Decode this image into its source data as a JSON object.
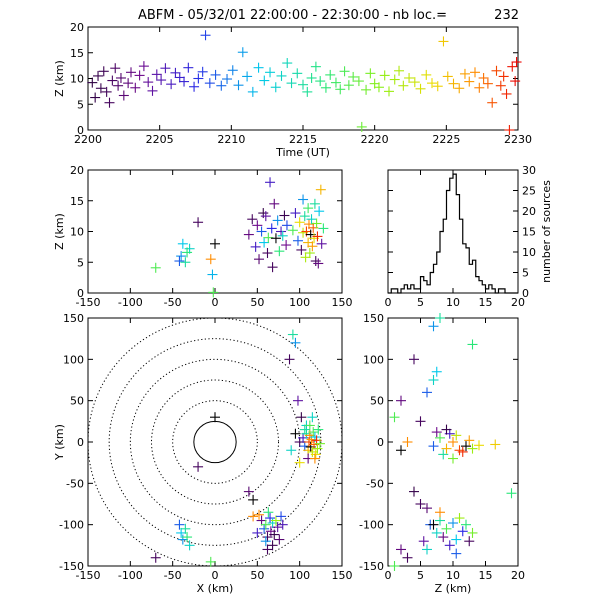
{
  "header": {
    "title_left": "ABFM - 05/32/01 22:00:00 - 22:30:00 - nb loc.=",
    "count": "232"
  },
  "chart_data": [
    {
      "id": "time-height",
      "type": "scatter",
      "xlabel": "Time (UT)",
      "ylabel": "Z (km)",
      "xlim": [
        2200,
        2230
      ],
      "ylim": [
        0,
        20
      ],
      "xticks": [
        2200,
        2205,
        2210,
        2215,
        2220,
        2225,
        2230
      ],
      "yticks": [
        0,
        5,
        10,
        15,
        20
      ],
      "color_by": "time",
      "points": [
        [
          2200.3,
          9.2
        ],
        [
          2200.5,
          6.3
        ],
        [
          2200.7,
          10.5
        ],
        [
          2200.9,
          8.1
        ],
        [
          2201.1,
          11.4
        ],
        [
          2201.3,
          7.4
        ],
        [
          2201.5,
          5.3
        ],
        [
          2201.7,
          9.6
        ],
        [
          2201.9,
          12.0
        ],
        [
          2202.1,
          8.6
        ],
        [
          2202.3,
          10.1
        ],
        [
          2202.5,
          6.7
        ],
        [
          2202.8,
          9.1
        ],
        [
          2203.0,
          11.2
        ],
        [
          2203.3,
          8.2
        ],
        [
          2203.6,
          10.6
        ],
        [
          2203.9,
          12.4
        ],
        [
          2204.2,
          9.3
        ],
        [
          2204.5,
          7.6
        ],
        [
          2204.8,
          10.8
        ],
        [
          2205.1,
          9.7
        ],
        [
          2205.4,
          12.0
        ],
        [
          2205.8,
          8.9
        ],
        [
          2206.1,
          11.1
        ],
        [
          2206.4,
          10.2
        ],
        [
          2206.7,
          9.4
        ],
        [
          2207.0,
          12.1
        ],
        [
          2207.4,
          8.4
        ],
        [
          2207.7,
          10.0
        ],
        [
          2208.0,
          11.3
        ],
        [
          2208.2,
          18.4
        ],
        [
          2208.5,
          9.1
        ],
        [
          2208.9,
          10.7
        ],
        [
          2209.3,
          8.6
        ],
        [
          2209.7,
          9.9
        ],
        [
          2210.1,
          11.6
        ],
        [
          2210.5,
          8.7
        ],
        [
          2210.8,
          15.1
        ],
        [
          2211.1,
          10.4
        ],
        [
          2211.5,
          7.4
        ],
        [
          2211.9,
          12.1
        ],
        [
          2212.3,
          9.6
        ],
        [
          2212.7,
          11.2
        ],
        [
          2213.1,
          8.3
        ],
        [
          2213.5,
          10.5
        ],
        [
          2213.9,
          13.0
        ],
        [
          2214.2,
          9.1
        ],
        [
          2214.6,
          11.0
        ],
        [
          2215.0,
          8.8
        ],
        [
          2215.3,
          7.4
        ],
        [
          2215.6,
          10.1
        ],
        [
          2215.9,
          12.3
        ],
        [
          2216.2,
          9.5
        ],
        [
          2216.6,
          8.2
        ],
        [
          2216.9,
          10.7
        ],
        [
          2217.3,
          9.2
        ],
        [
          2217.6,
          7.9
        ],
        [
          2217.9,
          11.4
        ],
        [
          2218.2,
          8.7
        ],
        [
          2218.5,
          10.3
        ],
        [
          2218.9,
          9.5
        ],
        [
          2219.1,
          0.6
        ],
        [
          2219.4,
          7.8
        ],
        [
          2219.7,
          11.0
        ],
        [
          2220.0,
          9.0
        ],
        [
          2220.3,
          8.3
        ],
        [
          2220.7,
          10.6
        ],
        [
          2221.0,
          7.5
        ],
        [
          2221.4,
          9.8
        ],
        [
          2221.7,
          11.5
        ],
        [
          2222.0,
          8.6
        ],
        [
          2222.4,
          10.1
        ],
        [
          2222.8,
          9.3
        ],
        [
          2223.2,
          8.0
        ],
        [
          2223.6,
          10.7
        ],
        [
          2224.0,
          9.1
        ],
        [
          2224.4,
          8.5
        ],
        [
          2224.8,
          17.2
        ],
        [
          2225.1,
          10.4
        ],
        [
          2225.5,
          9.0
        ],
        [
          2225.9,
          8.1
        ],
        [
          2226.3,
          10.9
        ],
        [
          2226.6,
          9.4
        ],
        [
          2227.0,
          11.2
        ],
        [
          2227.3,
          8.2
        ],
        [
          2227.6,
          10.1
        ],
        [
          2227.9,
          9.0
        ],
        [
          2228.2,
          5.3
        ],
        [
          2228.5,
          11.5
        ],
        [
          2228.8,
          8.6
        ],
        [
          2229.0,
          10.4
        ],
        [
          2229.2,
          7.0
        ],
        [
          2229.4,
          0.0
        ],
        [
          2229.6,
          12.3
        ],
        [
          2229.8,
          9.5
        ],
        [
          2229.9,
          13.2
        ]
      ]
    },
    {
      "id": "x-height",
      "type": "scatter",
      "xlabel": "",
      "ylabel": "Z (km)",
      "xlim": [
        -150,
        150
      ],
      "ylim": [
        0,
        20
      ],
      "xticks": [
        -150,
        -100,
        -50,
        0,
        50,
        100,
        150
      ],
      "yticks": [
        0,
        5,
        10,
        15,
        20
      ],
      "points": [
        [
          -70,
          4.1,
          0.6
        ],
        [
          -40,
          6.0,
          0.35
        ],
        [
          -38,
          8.0,
          0.4
        ],
        [
          -35,
          5.0,
          0.5
        ],
        [
          -30,
          7.2,
          0.45
        ],
        [
          -42,
          5.2,
          0.3
        ],
        [
          -33,
          6.6,
          0.55
        ],
        [
          -20,
          11.5,
          0.05
        ],
        [
          -5,
          5.5,
          0.9
        ],
        [
          0,
          8.0,
          0.99
        ],
        [
          -3,
          3.0,
          0.38
        ],
        [
          -2,
          0.1,
          0.6
        ],
        [
          40,
          9.5,
          0.1
        ],
        [
          44,
          12.0,
          0.05
        ],
        [
          48,
          7.5,
          0.2
        ],
        [
          50,
          11.0,
          0.12
        ],
        [
          52,
          5.5,
          0.08
        ],
        [
          55,
          10.0,
          0.3
        ],
        [
          57,
          13.0,
          0.02
        ],
        [
          58,
          8.2,
          0.4
        ],
        [
          60,
          12.5,
          0.15
        ],
        [
          62,
          6.5,
          0.05
        ],
        [
          63,
          9.0,
          0.6
        ],
        [
          65,
          18.0,
          0.2
        ],
        [
          67,
          10.5,
          0.25
        ],
        [
          68,
          4.2,
          0.05
        ],
        [
          70,
          14.5,
          0.1
        ],
        [
          72,
          8.9,
          0.99
        ],
        [
          74,
          11.8,
          0.35
        ],
        [
          76,
          6.8,
          0.55
        ],
        [
          78,
          10.0,
          0.18
        ],
        [
          80,
          9.3,
          0.45
        ],
        [
          82,
          12.6,
          0.03
        ],
        [
          84,
          7.8,
          0.12
        ],
        [
          85,
          11.0,
          0.28
        ],
        [
          92,
          10.2,
          0.6
        ],
        [
          95,
          13.0,
          0.2
        ],
        [
          98,
          8.5,
          0.3
        ],
        [
          100,
          11.5,
          0.8
        ],
        [
          102,
          7.0,
          0.05
        ],
        [
          104,
          9.8,
          0.75
        ],
        [
          106,
          12.5,
          0.5
        ],
        [
          108,
          10.0,
          0.95
        ],
        [
          110,
          8.2,
          0.85
        ],
        [
          111,
          11.2,
          0.9
        ],
        [
          112,
          6.5,
          0.7
        ],
        [
          113,
          9.5,
          0.99
        ],
        [
          114,
          12.0,
          0.45
        ],
        [
          115,
          7.6,
          0.88
        ],
        [
          116,
          10.6,
          0.93
        ],
        [
          117,
          8.9,
          0.8
        ],
        [
          118,
          14.5,
          0.5
        ],
        [
          119,
          5.2,
          0.05
        ],
        [
          120,
          11.3,
          0.65
        ],
        [
          121,
          9.2,
          0.97
        ],
        [
          122,
          4.8,
          0.1
        ],
        [
          123,
          13.3,
          0.4
        ],
        [
          125,
          16.8,
          0.85
        ],
        [
          126,
          8.0,
          0.15
        ],
        [
          128,
          10.5,
          0.55
        ],
        [
          104,
          15.2,
          0.35
        ],
        [
          110,
          13.8,
          0.58
        ],
        [
          107,
          5.8,
          0.72
        ]
      ]
    },
    {
      "id": "height-histogram",
      "type": "bar",
      "xlabel": "",
      "ylabel": "number of sources",
      "xlim": [
        0,
        20
      ],
      "ylim": [
        0,
        30
      ],
      "xticks": [
        0,
        5,
        10,
        15,
        20
      ],
      "yticks": [
        0,
        5,
        10,
        15,
        20,
        25,
        30
      ],
      "bin_width": 0.5,
      "bin_start": 0,
      "values": [
        0,
        1,
        1,
        0,
        1,
        2,
        1,
        2,
        1,
        1,
        4,
        3,
        2,
        5,
        7,
        10,
        15,
        18,
        25,
        28,
        29,
        24,
        18,
        12,
        11,
        7,
        8,
        4,
        3,
        2,
        1,
        2,
        1,
        0,
        1,
        1,
        0,
        0,
        0,
        0
      ]
    },
    {
      "id": "plan-view",
      "type": "scatter",
      "xlabel": "X (km)",
      "ylabel": "Y (km)",
      "xlim": [
        -150,
        150
      ],
      "ylim": [
        -150,
        150
      ],
      "xticks": [
        -150,
        -100,
        -50,
        0,
        50,
        100,
        150
      ],
      "yticks": [
        -150,
        -100,
        -50,
        0,
        50,
        100,
        150
      ],
      "range_rings_km": [
        25,
        50,
        75,
        100,
        125,
        150
      ],
      "points": [
        [
          -70,
          -140,
          0.05
        ],
        [
          -40,
          -110,
          0.4
        ],
        [
          -38,
          -118,
          0.35
        ],
        [
          -35,
          -105,
          0.5
        ],
        [
          -30,
          -125,
          0.45
        ],
        [
          -42,
          -100,
          0.3
        ],
        [
          -33,
          -115,
          0.55
        ],
        [
          0,
          30,
          0.99
        ],
        [
          -5,
          -145,
          0.6
        ],
        [
          -20,
          -30,
          0.05
        ],
        [
          45,
          -90,
          0.9
        ],
        [
          50,
          -110,
          0.2
        ],
        [
          55,
          -95,
          0.1
        ],
        [
          58,
          -105,
          0.3
        ],
        [
          60,
          -100,
          0.6
        ],
        [
          62,
          -115,
          0.05
        ],
        [
          65,
          -92,
          0.25
        ],
        [
          66,
          -108,
          0.12
        ],
        [
          68,
          -98,
          0.45
        ],
        [
          70,
          -112,
          0.02
        ],
        [
          72,
          -95,
          0.7
        ],
        [
          74,
          -103,
          0.15
        ],
        [
          76,
          -118,
          0.08
        ],
        [
          78,
          -90,
          0.28
        ],
        [
          63,
          -85,
          0.55
        ],
        [
          80,
          -100,
          0.18
        ],
        [
          52,
          -88,
          0.9
        ],
        [
          60,
          -120,
          0.35
        ],
        [
          100,
          0,
          0.05
        ],
        [
          104,
          5,
          0.2
        ],
        [
          106,
          -5,
          0.3
        ],
        [
          108,
          10,
          0.5
        ],
        [
          110,
          -10,
          0.85
        ],
        [
          111,
          0,
          0.95
        ],
        [
          112,
          8,
          0.9
        ],
        [
          113,
          -6,
          0.99
        ],
        [
          114,
          3,
          0.88
        ],
        [
          115,
          -12,
          0.75
        ],
        [
          116,
          12,
          0.6
        ],
        [
          117,
          -3,
          0.93
        ],
        [
          118,
          6,
          0.4
        ],
        [
          119,
          -15,
          0.8
        ],
        [
          120,
          2,
          0.97
        ],
        [
          121,
          -8,
          0.7
        ],
        [
          122,
          15,
          0.55
        ],
        [
          124,
          -2,
          0.65
        ],
        [
          108,
          20,
          0.45
        ],
        [
          110,
          -20,
          0.1
        ],
        [
          90,
          -10,
          0.45
        ],
        [
          95,
          10,
          0.99
        ],
        [
          102,
          30,
          0.02
        ],
        [
          98,
          50,
          0.15
        ],
        [
          88,
          100,
          0.05
        ],
        [
          95,
          120,
          0.35
        ],
        [
          92,
          130,
          0.5
        ],
        [
          115,
          30,
          0.45
        ],
        [
          40,
          -60,
          0.08
        ],
        [
          45,
          -70,
          0.99
        ],
        [
          62,
          -130,
          0.05
        ],
        [
          68,
          -125,
          0.03
        ],
        [
          112,
          20,
          0.6
        ],
        [
          106,
          15,
          0.5
        ],
        [
          118,
          -20,
          0.9
        ],
        [
          100,
          -25,
          0.8
        ]
      ]
    },
    {
      "id": "height-y",
      "type": "scatter",
      "xlabel": "Z (km)",
      "ylabel": "",
      "xlim": [
        0,
        20
      ],
      "ylim": [
        -150,
        150
      ],
      "xticks": [
        0,
        5,
        10,
        15,
        20
      ],
      "yticks": [
        -150,
        -100,
        -50,
        0,
        50,
        100,
        150
      ],
      "points": [
        [
          4,
          100,
          0.05
        ],
        [
          8,
          150,
          0.5
        ],
        [
          7,
          140,
          0.35
        ],
        [
          13,
          118,
          0.55
        ],
        [
          7.5,
          85,
          0.4
        ],
        [
          7,
          75,
          0.45
        ],
        [
          6,
          60,
          0.3
        ],
        [
          2,
          50,
          0.1
        ],
        [
          1,
          30,
          0.6
        ],
        [
          5,
          25,
          0.05
        ],
        [
          3,
          0,
          0.9
        ],
        [
          2,
          -10,
          0.99
        ],
        [
          19,
          -62,
          0.55
        ],
        [
          7,
          -5,
          0.3
        ],
        [
          8,
          5,
          0.6
        ],
        [
          9,
          -8,
          0.85
        ],
        [
          10,
          0,
          0.9
        ],
        [
          11,
          -10,
          0.95
        ],
        [
          9.5,
          10,
          0.2
        ],
        [
          12,
          -5,
          0.99
        ],
        [
          8.5,
          -15,
          0.5
        ],
        [
          10.5,
          8,
          0.75
        ],
        [
          11.5,
          -12,
          0.97
        ],
        [
          12.5,
          2,
          0.88
        ],
        [
          13,
          -8,
          0.7
        ],
        [
          14,
          -4,
          0.8
        ],
        [
          16.5,
          -3,
          0.82
        ],
        [
          9,
          15,
          0.02
        ],
        [
          7.5,
          12,
          0.12
        ],
        [
          10,
          -20,
          0.65
        ],
        [
          4,
          -60,
          0.02
        ],
        [
          5,
          -75,
          0.05
        ],
        [
          6,
          -80,
          0.08
        ],
        [
          5.5,
          -120,
          0.15
        ],
        [
          6.5,
          -100,
          0.3
        ],
        [
          7.5,
          -110,
          0.45
        ],
        [
          8,
          -95,
          0.5
        ],
        [
          8.5,
          -115,
          0.1
        ],
        [
          9,
          -105,
          0.6
        ],
        [
          9.5,
          -125,
          0.2
        ],
        [
          10,
          -98,
          0.35
        ],
        [
          10.5,
          -118,
          0.4
        ],
        [
          11,
          -92,
          0.7
        ],
        [
          11.5,
          -108,
          0.25
        ],
        [
          12,
          -100,
          0.55
        ],
        [
          12.5,
          -120,
          0.05
        ],
        [
          7,
          -100,
          0.99
        ],
        [
          8,
          -85,
          0.9
        ],
        [
          2,
          -130,
          0.1
        ],
        [
          3,
          -140,
          0.05
        ],
        [
          1,
          -150,
          0.6
        ],
        [
          6,
          -130,
          0.45
        ],
        [
          10.5,
          -135,
          0.3
        ],
        [
          13,
          -110,
          0.65
        ]
      ]
    }
  ]
}
